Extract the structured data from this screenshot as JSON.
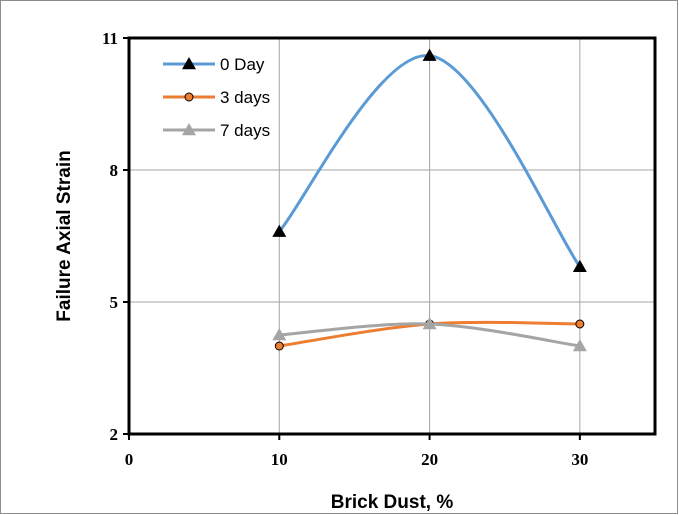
{
  "chart_data": {
    "type": "line",
    "title": "",
    "xlabel": "Brick Dust, %",
    "ylabel": "Failure Axial Strain",
    "xlim": [
      0,
      35
    ],
    "ylim": [
      2,
      11
    ],
    "x_ticks": [
      "0",
      "10",
      "20",
      "30"
    ],
    "y_ticks": [
      "2",
      "5",
      "8",
      "11"
    ],
    "grid": true,
    "legend_position": "top-left",
    "x": [
      10,
      20,
      30
    ],
    "series": [
      {
        "name": "0 Day",
        "values": [
          6.6,
          10.6,
          5.8
        ],
        "color": "#5b9bd5",
        "marker": "triangle",
        "marker_color": "#000000"
      },
      {
        "name": "3 days",
        "values": [
          4.0,
          4.5,
          4.5
        ],
        "color": "#ed7d31",
        "marker": "circle",
        "marker_color": "#000000"
      },
      {
        "name": "7 days",
        "values": [
          4.25,
          4.5,
          4.0
        ],
        "color": "#a5a5a5",
        "marker": "triangle",
        "marker_color": "#a5a5a5"
      }
    ]
  }
}
